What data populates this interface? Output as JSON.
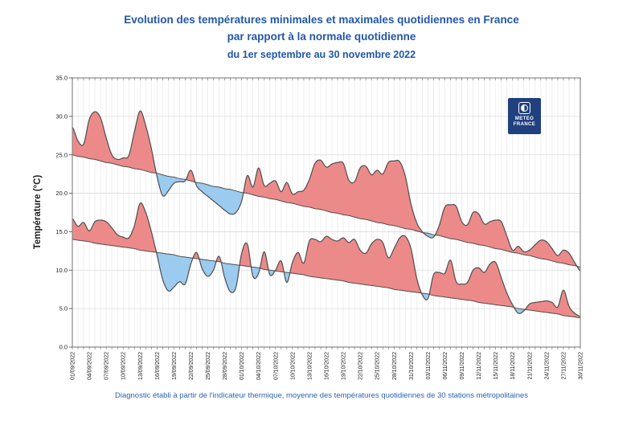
{
  "title": {
    "line1": "Evolution des températures minimales et maximales quotidiennes en France",
    "line2": "par rapport à la normale quotidienne",
    "line3": "du 1er septembre au 30 novembre 2022"
  },
  "footer": "Diagnostic établi à partir de l'indicateur thermique, moyenne des températures quotidiennes de 30 stations métropolitaines",
  "logo": {
    "line1": "METEO",
    "line2": "FRANCE",
    "bg_color": "#20407e"
  },
  "colors": {
    "above_normal_fill": "#ec8a8a",
    "below_normal_fill": "#9bcbef",
    "curve_stroke": "#4d4d4d",
    "grid_vertical": "#e8e8e8",
    "grid_horizontal": "#dcdcdc",
    "plot_border": "#888888",
    "title_text": "#2257a8",
    "footer_text": "#2b62b5",
    "axis_text": "#222222"
  },
  "chart_data": {
    "type": "area",
    "title": "Evolution des températures minimales et maximales quotidiennes en France par rapport à la normale quotidienne du 1er septembre au 30 novembre 2022",
    "xlabel": "",
    "ylabel": "Température (°C)",
    "ylim": [
      0,
      35
    ],
    "y_ticks": [
      0,
      5,
      10,
      15,
      20,
      25,
      30,
      35
    ],
    "x_tick_every": 3,
    "grid": true,
    "legend": false,
    "dates": [
      "01/09/2022",
      "02/09/2022",
      "03/09/2022",
      "04/09/2022",
      "05/09/2022",
      "06/09/2022",
      "07/09/2022",
      "08/09/2022",
      "09/09/2022",
      "10/09/2022",
      "11/09/2022",
      "12/09/2022",
      "13/09/2022",
      "14/09/2022",
      "15/09/2022",
      "16/09/2022",
      "17/09/2022",
      "18/09/2022",
      "19/09/2022",
      "20/09/2022",
      "21/09/2022",
      "22/09/2022",
      "23/09/2022",
      "24/09/2022",
      "25/09/2022",
      "26/09/2022",
      "27/09/2022",
      "28/09/2022",
      "29/09/2022",
      "30/09/2022",
      "01/10/2022",
      "02/10/2022",
      "03/10/2022",
      "04/10/2022",
      "05/10/2022",
      "06/10/2022",
      "07/10/2022",
      "08/10/2022",
      "09/10/2022",
      "10/10/2022",
      "11/10/2022",
      "12/10/2022",
      "13/10/2022",
      "14/10/2022",
      "15/10/2022",
      "16/10/2022",
      "17/10/2022",
      "18/10/2022",
      "19/10/2022",
      "20/10/2022",
      "21/10/2022",
      "22/10/2022",
      "23/10/2022",
      "24/10/2022",
      "25/10/2022",
      "26/10/2022",
      "27/10/2022",
      "28/10/2022",
      "29/10/2022",
      "30/10/2022",
      "31/10/2022",
      "01/11/2022",
      "02/11/2022",
      "03/11/2022",
      "04/11/2022",
      "05/11/2022",
      "06/11/2022",
      "07/11/2022",
      "08/11/2022",
      "09/11/2022",
      "10/11/2022",
      "11/11/2022",
      "12/11/2022",
      "13/11/2022",
      "14/11/2022",
      "15/11/2022",
      "16/11/2022",
      "17/11/2022",
      "18/11/2022",
      "19/11/2022",
      "20/11/2022",
      "21/11/2022",
      "22/11/2022",
      "23/11/2022",
      "24/11/2022",
      "25/11/2022",
      "26/11/2022",
      "27/11/2022",
      "28/11/2022",
      "29/11/2022",
      "30/11/2022"
    ],
    "series": [
      {
        "name": "temperature_maximale",
        "values": [
          28.6,
          26.8,
          26.4,
          29.6,
          30.6,
          29.8,
          27.2,
          25.0,
          24.4,
          24.6,
          24.9,
          28.0,
          30.7,
          28.8,
          25.8,
          22.2,
          19.7,
          20.3,
          21.3,
          21.5,
          21.6,
          23.0,
          21.0,
          20.2,
          19.6,
          19.0,
          18.4,
          17.8,
          17.3,
          17.5,
          19.0,
          22.3,
          20.8,
          23.3,
          21.0,
          21.3,
          21.6,
          20.2,
          21.4,
          19.9,
          20.2,
          20.4,
          21.8,
          23.9,
          24.3,
          23.4,
          23.8,
          24.0,
          23.9,
          21.7,
          21.5,
          23.3,
          23.5,
          22.4,
          23.0,
          22.5,
          24.0,
          24.2,
          24.1,
          22.2,
          18.6,
          16.2,
          15.0,
          14.4,
          14.3,
          15.8,
          18.2,
          18.5,
          18.3,
          16.3,
          15.9,
          17.5,
          17.3,
          16.0,
          16.3,
          16.5,
          16.3,
          14.4,
          12.6,
          13.1,
          12.4,
          12.6,
          13.3,
          13.9,
          13.7,
          12.8,
          11.9,
          12.6,
          12.2,
          11.0,
          9.9
        ]
      },
      {
        "name": "temperature_minimale",
        "values": [
          16.7,
          15.7,
          16.2,
          15.1,
          16.3,
          16.5,
          16.3,
          15.5,
          14.6,
          14.3,
          14.2,
          15.8,
          18.7,
          17.5,
          15.0,
          12.0,
          8.8,
          7.3,
          7.8,
          8.5,
          8.2,
          10.8,
          12.3,
          10.2,
          9.2,
          10.0,
          11.8,
          9.0,
          7.2,
          7.8,
          12.2,
          13.4,
          9.2,
          9.6,
          12.4,
          9.4,
          10.0,
          11.2,
          8.4,
          11.0,
          12.3,
          10.9,
          13.8,
          14.0,
          13.7,
          14.4,
          14.0,
          13.8,
          14.2,
          13.6,
          14.0,
          12.6,
          12.2,
          13.4,
          14.0,
          13.6,
          11.6,
          12.8,
          14.2,
          14.4,
          12.8,
          9.0,
          6.8,
          6.3,
          9.4,
          9.7,
          9.6,
          11.3,
          8.5,
          8.2,
          8.4,
          10.0,
          10.3,
          9.7,
          10.8,
          11.0,
          9.0,
          7.0,
          5.5,
          4.4,
          4.7,
          5.6,
          5.8,
          5.9,
          6.0,
          5.8,
          5.2,
          7.4,
          5.3,
          4.4,
          4.0
        ]
      },
      {
        "name": "normale_maximale",
        "values": [
          25.0,
          24.8,
          24.7,
          24.5,
          24.4,
          24.2,
          24.0,
          23.9,
          23.7,
          23.5,
          23.4,
          23.2,
          23.1,
          22.9,
          22.7,
          22.6,
          22.4,
          22.2,
          22.1,
          21.9,
          21.8,
          21.6,
          21.4,
          21.3,
          21.1,
          20.9,
          20.8,
          20.6,
          20.5,
          20.3,
          20.1,
          20.0,
          19.8,
          19.6,
          19.5,
          19.3,
          19.2,
          19.0,
          18.8,
          18.7,
          18.5,
          18.3,
          18.2,
          18.0,
          17.9,
          17.7,
          17.5,
          17.4,
          17.2,
          17.1,
          16.9,
          16.7,
          16.6,
          16.4,
          16.2,
          16.1,
          15.9,
          15.8,
          15.6,
          15.4,
          15.3,
          15.1,
          14.9,
          14.8,
          14.6,
          14.5,
          14.3,
          14.1,
          14.0,
          13.8,
          13.6,
          13.5,
          13.3,
          13.2,
          13.0,
          12.8,
          12.7,
          12.5,
          12.3,
          12.2,
          12.0,
          11.9,
          11.7,
          11.5,
          11.4,
          11.2,
          11.0,
          10.9,
          10.7,
          10.6,
          10.4
        ]
      },
      {
        "name": "normale_minimale",
        "values": [
          14.0,
          13.9,
          13.8,
          13.7,
          13.5,
          13.4,
          13.3,
          13.2,
          13.1,
          13.0,
          12.9,
          12.8,
          12.6,
          12.5,
          12.4,
          12.3,
          12.2,
          12.1,
          12.0,
          11.8,
          11.7,
          11.6,
          11.5,
          11.4,
          11.3,
          11.2,
          11.1,
          10.9,
          10.8,
          10.7,
          10.6,
          10.5,
          10.4,
          10.3,
          10.1,
          10.0,
          9.9,
          9.8,
          9.7,
          9.6,
          9.5,
          9.4,
          9.2,
          9.1,
          9.0,
          8.9,
          8.8,
          8.7,
          8.6,
          8.4,
          8.3,
          8.2,
          8.1,
          8.0,
          7.9,
          7.8,
          7.7,
          7.5,
          7.4,
          7.3,
          7.2,
          7.1,
          7.0,
          6.9,
          6.7,
          6.6,
          6.5,
          6.4,
          6.3,
          6.2,
          6.1,
          6.0,
          5.8,
          5.7,
          5.6,
          5.5,
          5.4,
          5.3,
          5.2,
          5.0,
          4.9,
          4.8,
          4.7,
          4.6,
          4.5,
          4.4,
          4.3,
          4.1,
          4.0,
          3.9,
          3.8
        ]
      }
    ]
  }
}
